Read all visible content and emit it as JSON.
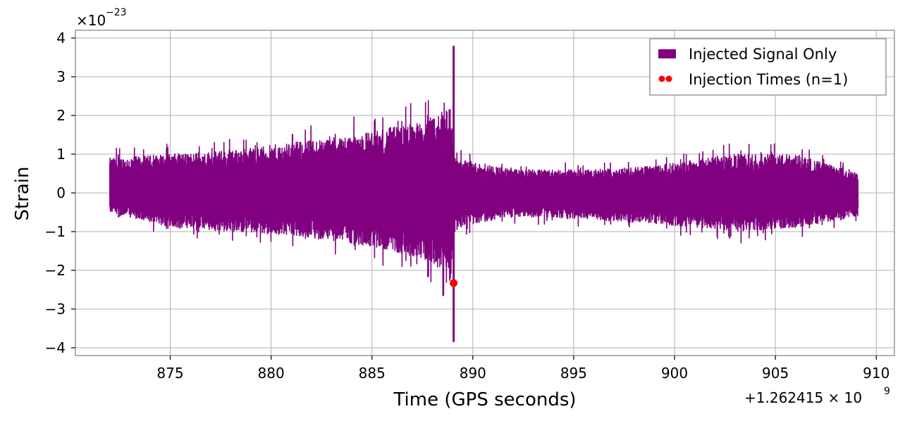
{
  "chart_data": {
    "type": "line",
    "xlabel": "Time (GPS seconds)",
    "ylabel": "Strain",
    "x_offset_label": "+1.262415 × 10",
    "x_offset_exp": "9",
    "y_scale_label": "×10",
    "y_scale_exp": "−23",
    "xlim": [
      870.3,
      910.9
    ],
    "ylim": [
      -4.2,
      4.2
    ],
    "x_ticks": [
      875,
      880,
      885,
      890,
      895,
      900,
      905,
      910
    ],
    "x_tick_labels": [
      "875",
      "880",
      "885",
      "890",
      "895",
      "900",
      "905",
      "910"
    ],
    "y_ticks": [
      -4,
      -3,
      -2,
      -1,
      0,
      1,
      2,
      3,
      4
    ],
    "y_tick_labels": [
      "−4",
      "−3",
      "−2",
      "−1",
      "0",
      "1",
      "2",
      "3",
      "4"
    ],
    "grid": true,
    "legend_position": "top-right",
    "series": [
      {
        "name": "Injected Signal Only",
        "color": "#800080",
        "x_start": 872.0,
        "x_end": 909.1,
        "envelope": [
          {
            "x": 872.0,
            "ymin": -0.5,
            "ymax": 0.9
          },
          {
            "x": 875.0,
            "ymin": -0.9,
            "ymax": 1.0
          },
          {
            "x": 878.0,
            "ymin": -1.0,
            "ymax": 1.1
          },
          {
            "x": 881.0,
            "ymin": -1.1,
            "ymax": 1.3
          },
          {
            "x": 884.0,
            "ymin": -1.3,
            "ymax": 1.5
          },
          {
            "x": 886.0,
            "ymin": -1.5,
            "ymax": 1.7
          },
          {
            "x": 888.0,
            "ymin": -1.8,
            "ymax": 1.9
          },
          {
            "x": 888.9,
            "ymin": -2.3,
            "ymax": 2.3
          },
          {
            "x": 889.1,
            "ymin": -0.9,
            "ymax": 0.9
          },
          {
            "x": 892.0,
            "ymin": -0.6,
            "ymax": 0.6
          },
          {
            "x": 896.0,
            "ymin": -0.7,
            "ymax": 0.6
          },
          {
            "x": 899.0,
            "ymin": -0.8,
            "ymax": 0.7
          },
          {
            "x": 903.0,
            "ymin": -1.0,
            "ymax": 1.0
          },
          {
            "x": 906.0,
            "ymin": -0.9,
            "ymax": 1.0
          },
          {
            "x": 909.1,
            "ymin": -0.6,
            "ymax": 0.5
          }
        ],
        "spikes": [
          {
            "x": 889.05,
            "ymin": -3.85,
            "ymax": 3.8
          }
        ]
      },
      {
        "name": "Injection Times (n=1)",
        "color": "#ff0000",
        "marker": "circle",
        "points": [
          {
            "x": 889.05,
            "y": -2.33
          }
        ]
      }
    ]
  }
}
